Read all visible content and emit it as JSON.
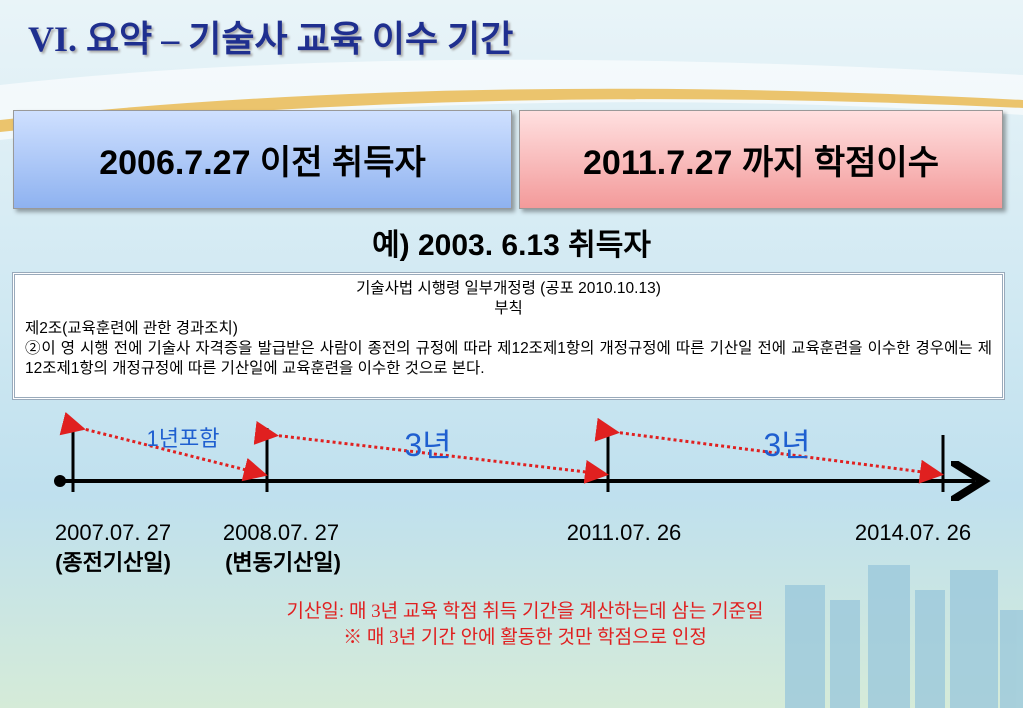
{
  "title": "VI. 요약 – 기술사 교육 이수 기간",
  "boxes": [
    "2006.7.27 이전 취득자",
    "2011.7.27 까지 학점이수"
  ],
  "example": "예) 2003. 6.13 취득자",
  "law": {
    "heading": "기술사법 시행령 일부개정령 (공포 2010.10.13)",
    "subheading": "부칙",
    "article": "제2조(교육훈련에 관한 경과조치)",
    "text": "②이 영 시행 전에 기술사 자격증을 발급받은 사람이 종전의 규정에 따라 제12조제1항의 개정규정에 따른 기산일 전에 교육훈련을 이수한 경우에는 제12조제1항의 개정규정에 따른 기산일에 교육훈련을 이수한 것으로 본다."
  },
  "timeline": {
    "spans": [
      "1년포함",
      "3년",
      "3년"
    ],
    "dates": [
      "2007.07. 27",
      "2008.07. 27",
      "2011.07. 26",
      "2014.07. 26"
    ],
    "date_notes": [
      "(종전기산일)",
      "(변동기산일)"
    ]
  },
  "notes": [
    "기산일:  매 3년 교육 학점 취득 기간을 계산하는데  삼는 기준일",
    "※ 매 3년 기간 안에 활동한 것만 학점으로 인정"
  ]
}
